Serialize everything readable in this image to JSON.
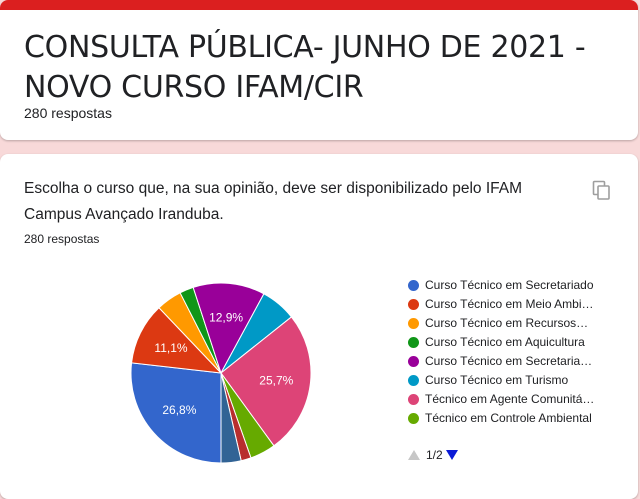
{
  "form": {
    "title": "CONSULTA PÚBLICA- JUNHO DE 2021 - NOVO CURSO IFAM/CIR",
    "responses": "280 respostas",
    "accent_color": "#db1f1f",
    "background_color": "#f8d9d9"
  },
  "question": {
    "text": "Escolha o curso que, na sua opinião, deve ser disponibilizado pelo IFAM Campus Avançado Iranduba.",
    "responses": "280 respostas",
    "copy_icon": "copy-icon"
  },
  "chart_data": {
    "type": "pie",
    "title": "",
    "start_angle_deg": 90,
    "label_threshold_pct": 10,
    "slices": [
      {
        "label": "Curso Técnico em Secretariado",
        "value": 26.8,
        "color": "#3366cc"
      },
      {
        "label": "Curso Técnico em Meio Ambi…",
        "value": 11.1,
        "color": "#dc3912"
      },
      {
        "label": "Curso Técnico em Recursos…",
        "value": 4.6,
        "color": "#ff9900"
      },
      {
        "label": "Curso Técnico em Aquicultura",
        "value": 2.5,
        "color": "#109618"
      },
      {
        "label": "Curso Técnico em Secretaria…",
        "value": 12.9,
        "color": "#990099"
      },
      {
        "label": "Curso Técnico em Turismo",
        "value": 6.4,
        "color": "#0099c6"
      },
      {
        "label": "Técnico em Agente Comunitá…",
        "value": 25.7,
        "color": "#dd4477"
      },
      {
        "label": "Técnico em Controle Ambiental",
        "value": 4.6,
        "color": "#66aa00"
      },
      {
        "label": "",
        "value": 1.8,
        "color": "#b82e2e"
      },
      {
        "label": "",
        "value": 3.6,
        "color": "#316395"
      }
    ],
    "legend": {
      "position": "right",
      "page": "1/2"
    }
  }
}
